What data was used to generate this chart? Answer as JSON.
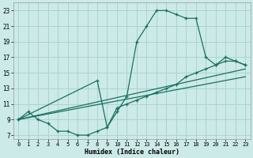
{
  "xlabel": "Humidex (Indice chaleur)",
  "bg_color": "#cceae8",
  "grid_color": "#aad4d0",
  "line_color": "#1a7060",
  "xlim": [
    -0.5,
    23.5
  ],
  "ylim": [
    6.5,
    24.0
  ],
  "xticks": [
    0,
    1,
    2,
    3,
    4,
    5,
    6,
    7,
    8,
    9,
    10,
    11,
    12,
    13,
    14,
    15,
    16,
    17,
    18,
    19,
    20,
    21,
    22,
    23
  ],
  "yticks": [
    7,
    9,
    11,
    13,
    15,
    17,
    19,
    21,
    23
  ],
  "curve1_x": [
    0,
    1,
    2,
    3,
    4,
    5,
    6,
    7,
    8,
    9,
    10,
    11,
    12,
    13,
    14,
    15,
    16,
    17,
    18,
    19,
    20,
    21,
    22,
    23
  ],
  "curve1_y": [
    9,
    10,
    9,
    8.5,
    7.5,
    7.5,
    7,
    7,
    7.5,
    8,
    10,
    12,
    19,
    21,
    23,
    23,
    22.5,
    22,
    22,
    17,
    16,
    17,
    16.5,
    16
  ],
  "curve2_x": [
    0,
    8,
    9,
    10,
    11,
    12,
    13,
    14,
    15,
    16,
    17,
    18,
    19,
    20,
    21,
    22,
    23
  ],
  "curve2_y": [
    9,
    14,
    8,
    10.5,
    11,
    11.5,
    12,
    12.5,
    13,
    13.5,
    14.5,
    15,
    15.5,
    16,
    16.5,
    16.5,
    16
  ],
  "curve3_x": [
    0,
    23
  ],
  "curve3_y": [
    9,
    15.5
  ],
  "curve4_x": [
    0,
    23
  ],
  "curve4_y": [
    9,
    14.5
  ]
}
